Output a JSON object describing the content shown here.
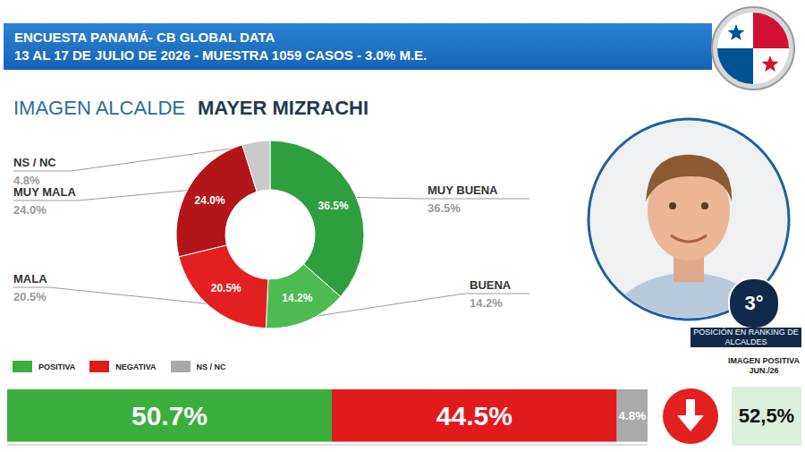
{
  "header": {
    "title": "ENCUESTA PANAMÁ- CB GLOBAL DATA",
    "subtitle": "13 AL 17 DE JULIO DE 2026 - MUESTRA 1059 CASOS - 3.0% M.E."
  },
  "heading": {
    "label": "IMAGEN ALCALDE",
    "name": "MAYER MIZRACHI"
  },
  "ranking": {
    "value": "3°",
    "label": "POSICIÓN EN RANKING DE ALCALDES"
  },
  "previous": {
    "label": "IMAGEN POSITIVA JUN./26",
    "value": "52,5%"
  },
  "chart_data": [
    {
      "type": "pie",
      "categories": [
        "MUY BUENA",
        "BUENA",
        "MALA",
        "MUY MALA",
        "NS / NC"
      ],
      "values": [
        36.5,
        14.2,
        20.5,
        24.0,
        4.8
      ],
      "value_labels": [
        "36.5%",
        "14.2%",
        "20.5%",
        "24.0%",
        "4.8%"
      ],
      "colors": [
        "#2f9e3f",
        "#4dbb4f",
        "#e3201f",
        "#b3151a",
        "#c9c9c9"
      ],
      "data_labels": true
    },
    {
      "type": "bar",
      "orientation": "horizontal",
      "stacked": true,
      "xlim": [
        0,
        100
      ],
      "tick_labels": false,
      "legend": "top",
      "data_labels": true,
      "series": [
        {
          "name": "POSITIVA",
          "color": "#3cae3c",
          "values": [
            50.7
          ],
          "value_labels": [
            "50.7%"
          ]
        },
        {
          "name": "NEGATIVA",
          "color": "#e11b1b",
          "values": [
            44.5
          ],
          "value_labels": [
            "44.5%"
          ]
        },
        {
          "name": "NS / NC",
          "color": "#a9a9a9",
          "values": [
            4.8
          ],
          "value_labels": [
            "4.8%"
          ]
        }
      ]
    }
  ]
}
